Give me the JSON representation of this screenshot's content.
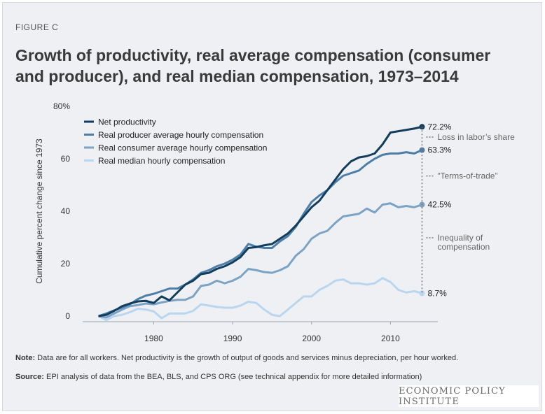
{
  "figure_label": "FIGURE C",
  "title": "Growth of productivity, real average compensation (consumer and producer), and real median compensation, 1973–2014",
  "notes": {
    "note_label": "Note:",
    "note_text": "Data are for all workers. Net productivity is the growth of output of goods and services minus depreciation, per hour worked.",
    "source_label": "Source:",
    "source_text": "EPI analysis of data from the BEA, BLS, and CPS ORG (see technical appendix for more detailed information)"
  },
  "brand": "ECONOMIC POLICY INSTITUTE",
  "chart_data": {
    "type": "line",
    "title": "Growth of productivity, real average compensation (consumer and producer), and real median compensation, 1973–2014",
    "xlabel": "",
    "ylabel": "Cumulative percent change since 1973",
    "xlim": [
      1971,
      2016
    ],
    "ylim": [
      0,
      80
    ],
    "x_ticks": [
      1980,
      1990,
      2000,
      2010
    ],
    "y_ticks": [
      0,
      20,
      40,
      60,
      80
    ],
    "y_tick_labels": [
      "0",
      "20",
      "40",
      "60",
      "80%"
    ],
    "legend_position": "top-left",
    "grid": false,
    "series": [
      {
        "name": "Net productivity",
        "color": "#123d5c",
        "end_label": "72.2%",
        "x": [
          1973,
          1974,
          1975,
          1976,
          1977,
          1978,
          1979,
          1980,
          1981,
          1982,
          1983,
          1984,
          1985,
          1986,
          1987,
          1988,
          1989,
          1990,
          1991,
          1992,
          1993,
          1994,
          1995,
          1996,
          1997,
          1998,
          1999,
          2000,
          2001,
          2002,
          2003,
          2004,
          2005,
          2006,
          2007,
          2008,
          2009,
          2010,
          2011,
          2012,
          2013,
          2014
        ],
        "values": [
          0,
          0.5,
          2.0,
          3.8,
          4.8,
          5.6,
          5.8,
          5.0,
          7.5,
          6.0,
          9.0,
          12.0,
          13.5,
          16.0,
          16.5,
          18.0,
          19.0,
          20.5,
          22.5,
          26.0,
          26.3,
          27.0,
          27.5,
          29.5,
          31.5,
          34.5,
          38.0,
          41.5,
          44.0,
          48.0,
          52.0,
          56.0,
          59.0,
          60.5,
          61.0,
          62.0,
          65.5,
          70.0,
          70.5,
          71.0,
          71.5,
          72.2
        ]
      },
      {
        "name": "Real producer average hourly compensation",
        "color": "#4d7ea8",
        "end_label": "63.3%",
        "x": [
          1973,
          1974,
          1975,
          1976,
          1977,
          1978,
          1979,
          1980,
          1981,
          1982,
          1983,
          1984,
          1985,
          1986,
          1987,
          1988,
          1989,
          1990,
          1991,
          1992,
          1993,
          1994,
          1995,
          1996,
          1997,
          1998,
          1999,
          2000,
          2001,
          2002,
          2003,
          2004,
          2005,
          2006,
          2007,
          2008,
          2009,
          2010,
          2011,
          2012,
          2013,
          2014
        ],
        "values": [
          0,
          1.0,
          2.2,
          3.3,
          4.5,
          6.5,
          7.8,
          8.5,
          9.5,
          10.5,
          10.5,
          12.0,
          14.0,
          16.5,
          17.5,
          19.0,
          20.0,
          21.5,
          23.5,
          27.5,
          26.5,
          26.0,
          26.0,
          28.5,
          30.5,
          34.0,
          39.0,
          43.5,
          46.0,
          48.0,
          51.0,
          53.5,
          54.5,
          55.5,
          58.0,
          60.0,
          61.5,
          62.0,
          62.0,
          62.5,
          62.0,
          63.3
        ]
      },
      {
        "name": "Real consumer average hourly compensation",
        "color": "#7ba3c6",
        "end_label": "42.5%",
        "x": [
          1973,
          1974,
          1975,
          1976,
          1977,
          1978,
          1979,
          1980,
          1981,
          1982,
          1983,
          1984,
          1985,
          1986,
          1987,
          1988,
          1989,
          1990,
          1991,
          1992,
          1993,
          1994,
          1995,
          1996,
          1997,
          1998,
          1999,
          2000,
          2001,
          2002,
          2003,
          2004,
          2005,
          2006,
          2007,
          2008,
          2009,
          2010,
          2011,
          2012,
          2013,
          2014
        ],
        "values": [
          0,
          -0.5,
          1.0,
          2.5,
          3.8,
          4.2,
          4.8,
          4.5,
          5.2,
          5.8,
          6.2,
          6.2,
          7.5,
          11.5,
          12.0,
          13.5,
          12.5,
          13.5,
          15.0,
          18.0,
          17.5,
          16.8,
          16.5,
          17.5,
          19.0,
          23.0,
          25.5,
          29.5,
          31.5,
          32.5,
          35.5,
          38.0,
          38.5,
          39.0,
          41.0,
          39.5,
          42.5,
          43.0,
          41.5,
          42.0,
          41.5,
          42.5
        ]
      },
      {
        "name": "Real median hourly compensation",
        "color": "#b9d6ee",
        "end_label": "8.7%",
        "x": [
          1973,
          1974,
          1975,
          1976,
          1977,
          1978,
          1979,
          1980,
          1981,
          1982,
          1983,
          1984,
          1985,
          1986,
          1987,
          1988,
          1989,
          1990,
          1991,
          1992,
          1993,
          1994,
          1995,
          1996,
          1997,
          1998,
          1999,
          2000,
          2001,
          2002,
          2003,
          2004,
          2005,
          2006,
          2007,
          2008,
          2009,
          2010,
          2011,
          2012,
          2013,
          2014
        ],
        "values": [
          0,
          -1.5,
          0,
          0.5,
          1.5,
          2.8,
          2.5,
          1.8,
          -0.8,
          1.0,
          1.0,
          1.0,
          2.0,
          4.5,
          4.0,
          3.5,
          3.2,
          3.2,
          4.0,
          5.5,
          5.0,
          2.5,
          0.5,
          0,
          2.5,
          5.0,
          7.5,
          7.5,
          10.0,
          11.5,
          13.5,
          14.0,
          12.5,
          12.5,
          12.0,
          12.5,
          14.5,
          13.0,
          10.0,
          9.0,
          9.5,
          8.7
        ]
      }
    ],
    "annotations": [
      {
        "text": "Loss in labor’s share",
        "from": "Net productivity",
        "to": "Real producer average hourly compensation"
      },
      {
        "text": "“Terms-of-trade”",
        "from": "Real producer average hourly compensation",
        "to": "Real consumer average hourly compensation"
      },
      {
        "text": "Inequality of compensation",
        "from": "Real consumer average hourly compensation",
        "to": "Real median hourly compensation"
      }
    ]
  }
}
